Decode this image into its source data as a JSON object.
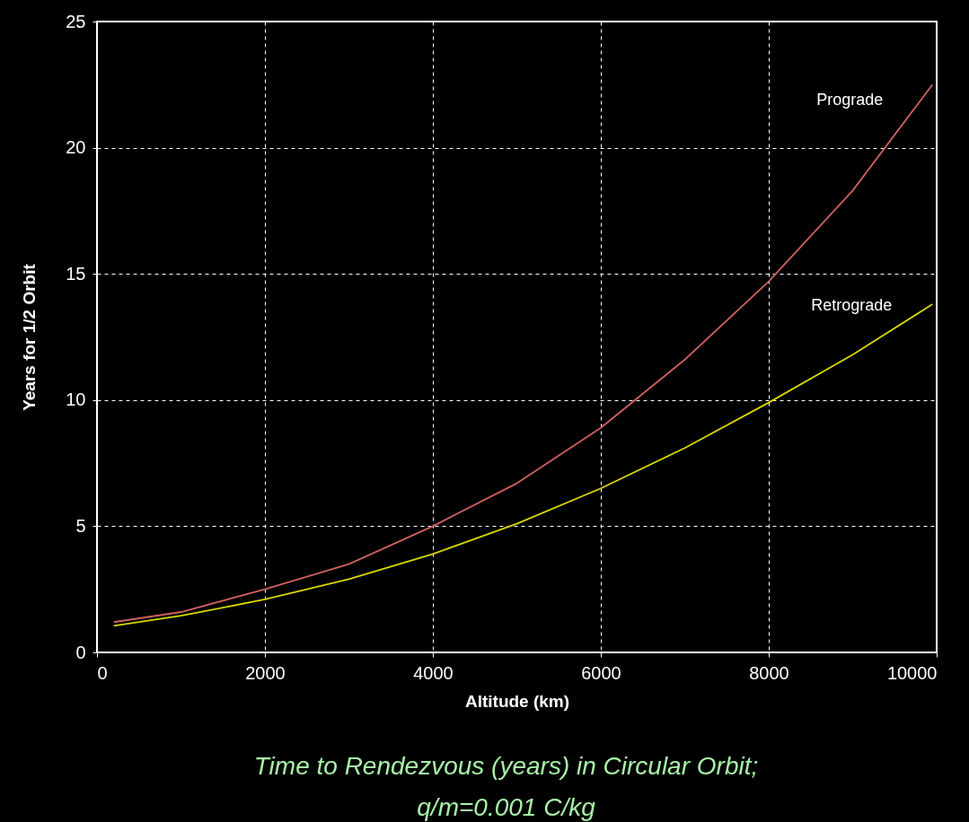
{
  "chart_data": {
    "type": "line",
    "xlabel": "Altitude (km)",
    "ylabel": "Years for 1/2 Orbit",
    "x": [
      200,
      1000,
      2000,
      3000,
      4000,
      5000,
      6000,
      7000,
      8000,
      9000,
      9950
    ],
    "series": [
      {
        "name": "Prograde",
        "color": "#d06060",
        "values": [
          1.2,
          1.6,
          2.5,
          3.5,
          5.0,
          6.7,
          8.9,
          11.6,
          14.7,
          18.3,
          22.5
        ]
      },
      {
        "name": "Retrograde",
        "color": "#d8d800",
        "values": [
          1.05,
          1.45,
          2.1,
          2.9,
          3.9,
          5.1,
          6.5,
          8.1,
          9.9,
          11.8,
          13.8
        ]
      }
    ],
    "xlim": [
      0,
      10000
    ],
    "xticks": [
      0,
      2000,
      4000,
      6000,
      8000,
      10000
    ],
    "ylim": [
      0,
      25
    ],
    "yticks": [
      0,
      5,
      10,
      15,
      20,
      25
    ],
    "grid": true,
    "legend": false,
    "marker": "none",
    "line_style": "solid",
    "annotations": [
      "Time to Rendezvous (years) in Circular Orbit;",
      "q/m=0.001 C/kg"
    ]
  }
}
